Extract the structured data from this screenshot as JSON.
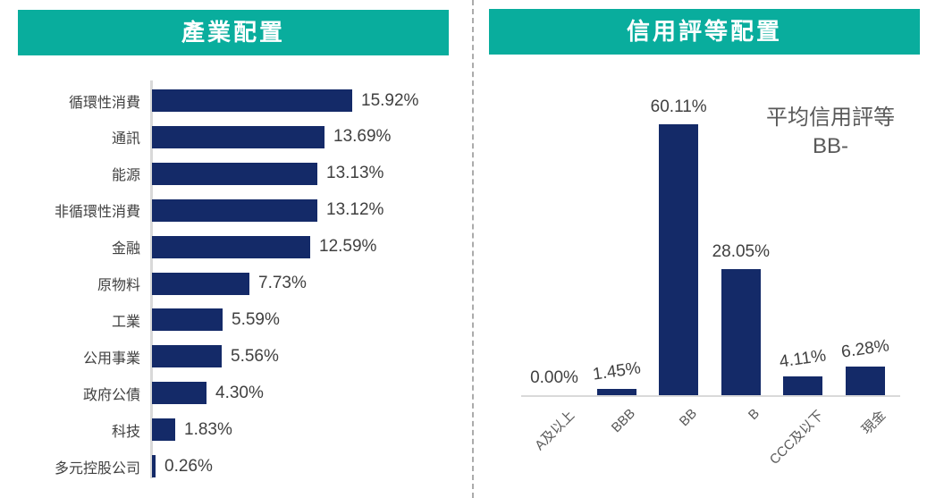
{
  "chart_data": [
    {
      "type": "bar",
      "orientation": "horizontal",
      "title": "產業配置",
      "categories": [
        "循環性消費",
        "通訊",
        "能源",
        "非循環性消費",
        "金融",
        "原物料",
        "工業",
        "公用事業",
        "政府公債",
        "科技",
        "多元控股公司"
      ],
      "values": [
        15.92,
        13.69,
        13.13,
        13.12,
        12.59,
        7.73,
        5.59,
        5.56,
        4.3,
        1.83,
        0.26
      ],
      "labels": [
        "15.92%",
        "13.69%",
        "13.13%",
        "13.12%",
        "12.59%",
        "7.73%",
        "5.59%",
        "5.56%",
        "4.30%",
        "1.83%",
        "0.26%"
      ],
      "xlabel": "",
      "ylabel": "",
      "xlim": [
        0,
        17
      ],
      "grid": false,
      "legend": false
    },
    {
      "type": "bar",
      "orientation": "vertical",
      "title": "信用評等配置",
      "categories": [
        "A及以上",
        "BBB",
        "BB",
        "B",
        "CCC及以下",
        "現金"
      ],
      "values": [
        0.0,
        1.45,
        60.11,
        28.05,
        4.11,
        6.28
      ],
      "labels": [
        "0.00%",
        "1.45%",
        "60.11%",
        "28.05%",
        "4.11%",
        "6.28%"
      ],
      "xlabel": "",
      "ylabel": "",
      "ylim": [
        0,
        65
      ],
      "grid": false,
      "legend": false,
      "annotation": {
        "line1": "平均信用評等",
        "line2": "BB-"
      }
    }
  ],
  "colors": {
    "header_bg": "#09ad9d",
    "header_text": "#ffffff",
    "bar": "#142a68",
    "label_text": "#404040",
    "tick_text": "#595959",
    "annotation_text": "#595959",
    "axis_line": "#d9d9d9",
    "divider": "#ababab",
    "background": "#ffffff"
  }
}
